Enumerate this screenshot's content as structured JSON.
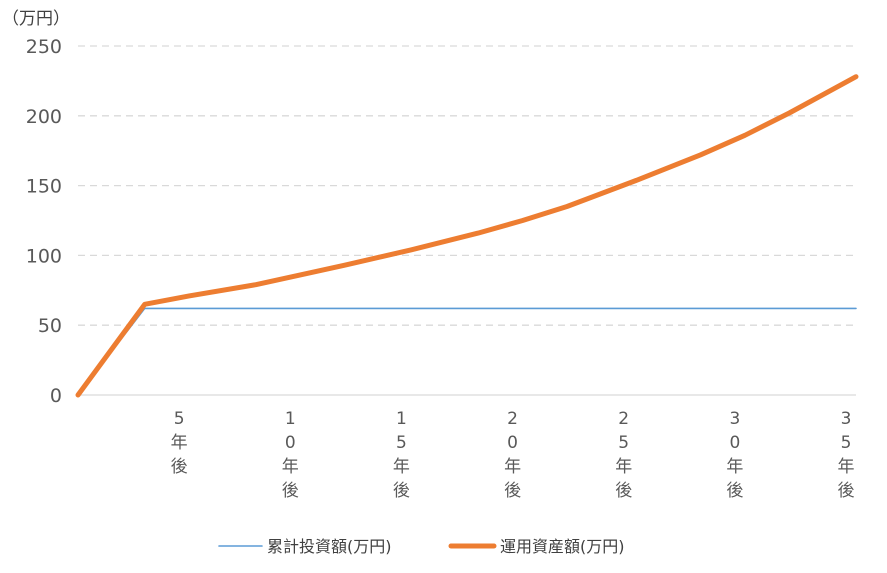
{
  "chart_data": {
    "type": "line",
    "y_unit_label": "（万円）",
    "ylim": [
      0,
      250
    ],
    "y_ticks": [
      "0",
      "50",
      "100",
      "150",
      "200",
      "250"
    ],
    "grid": "horizontal-dashed",
    "x_range_years": [
      0,
      35
    ],
    "x_tick_labels": [
      {
        "year": 5,
        "lines": [
          "5",
          "年",
          "後"
        ]
      },
      {
        "year": 10,
        "lines": [
          "1",
          "0",
          "年",
          "後"
        ]
      },
      {
        "year": 15,
        "lines": [
          "1",
          "5",
          "年",
          "後"
        ]
      },
      {
        "year": 20,
        "lines": [
          "2",
          "0",
          "年",
          "後"
        ]
      },
      {
        "year": 25,
        "lines": [
          "2",
          "5",
          "年",
          "後"
        ]
      },
      {
        "year": 30,
        "lines": [
          "3",
          "0",
          "年",
          "後"
        ]
      },
      {
        "year": 35,
        "lines": [
          "3",
          "5",
          "年",
          "後"
        ]
      }
    ],
    "legend_position": "bottom",
    "series": [
      {
        "name": "累計投資額(万円)",
        "color": "#5B9BD5",
        "points": [
          [
            0,
            0
          ],
          [
            3,
            62
          ],
          [
            35,
            62
          ]
        ]
      },
      {
        "name": "運用資産額(万円)",
        "color": "#ED7D31",
        "points": [
          [
            0,
            0
          ],
          [
            3,
            65
          ],
          [
            5,
            71
          ],
          [
            8,
            79
          ],
          [
            10,
            86
          ],
          [
            12,
            93
          ],
          [
            15,
            104
          ],
          [
            18,
            116
          ],
          [
            20,
            125
          ],
          [
            22,
            135
          ],
          [
            25,
            153
          ],
          [
            28,
            172
          ],
          [
            30,
            186
          ],
          [
            32,
            202
          ],
          [
            35,
            228
          ]
        ]
      }
    ]
  }
}
